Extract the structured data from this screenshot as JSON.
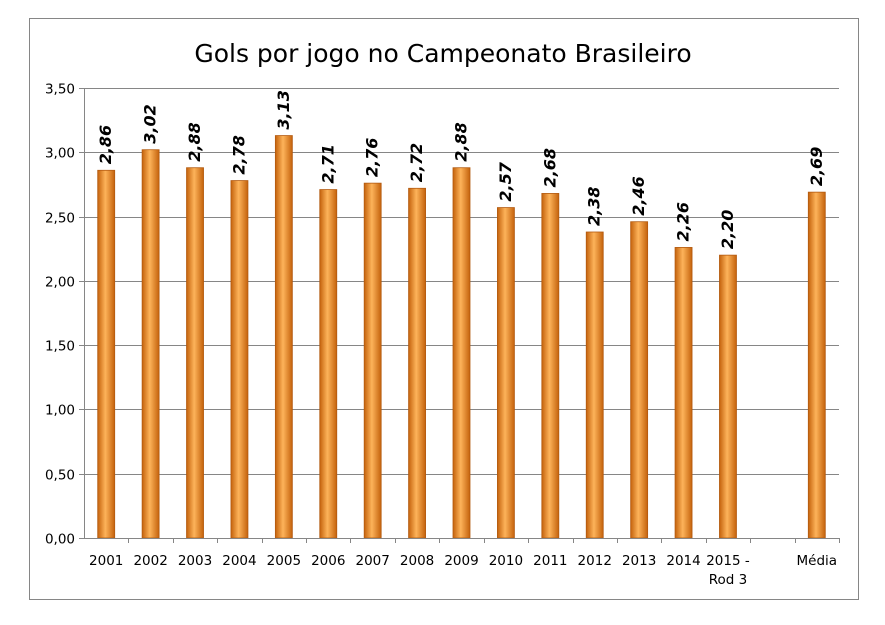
{
  "chart_data": {
    "type": "bar",
    "title": "Gols por jogo no Campeonato Brasileiro",
    "categories": [
      "2001",
      "2002",
      "2003",
      "2004",
      "2005",
      "2006",
      "2007",
      "2008",
      "2009",
      "2010",
      "2011",
      "2012",
      "2013",
      "2014",
      "2015 -\nRod 3",
      "",
      "Média"
    ],
    "values": [
      2.86,
      3.02,
      2.88,
      2.78,
      3.13,
      2.71,
      2.76,
      2.72,
      2.88,
      2.57,
      2.68,
      2.38,
      2.46,
      2.26,
      2.2,
      null,
      2.69
    ],
    "value_labels": [
      "2,86",
      "3,02",
      "2,88",
      "2,78",
      "3,13",
      "2,71",
      "2,76",
      "2,72",
      "2,88",
      "2,57",
      "2,68",
      "2,38",
      "2,46",
      "2,26",
      "2,20",
      "",
      "2,69"
    ],
    "yticks": [
      "0,00",
      "0,50",
      "1,00",
      "1,50",
      "2,00",
      "2,50",
      "3,00",
      "3,50"
    ],
    "ylim": [
      0,
      3.5
    ],
    "grid": true,
    "legend": "none",
    "xlabel": "",
    "ylabel": "",
    "colors": {
      "bar_light": "#fdb35a",
      "bar_mid": "#f08a1c",
      "bar_dark": "#c4620c",
      "bar_edge": "#b35a10",
      "gridline": "#868686",
      "axis": "#868686",
      "frame": "#868686",
      "text": "#000000"
    }
  }
}
